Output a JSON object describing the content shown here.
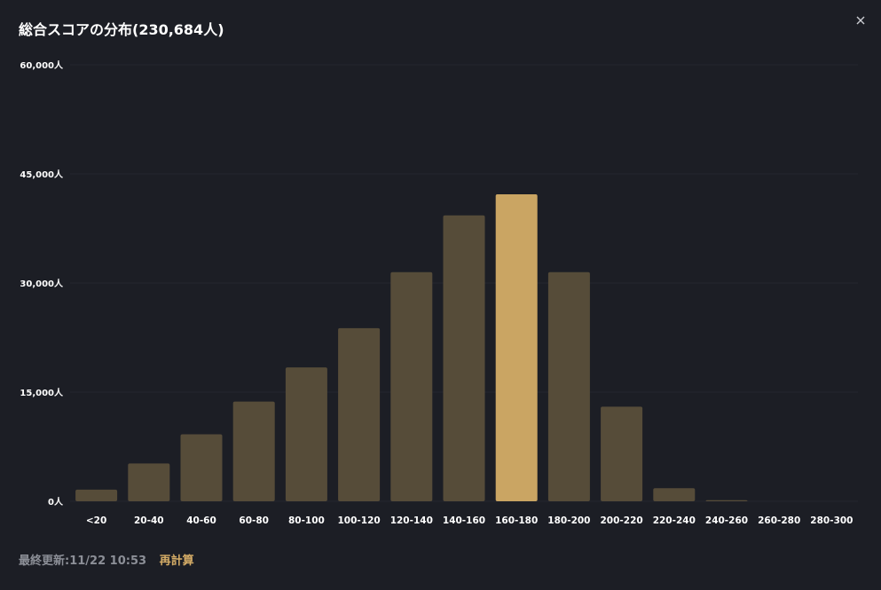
{
  "header": {
    "title": "総合スコアの分布(230,684人)",
    "close_icon": "close-icon"
  },
  "footer": {
    "updated_label": "最終更新:11/22 10:53",
    "recalc_label": "再計算"
  },
  "colors": {
    "background": "#1c1e25",
    "bar": "#564c39",
    "bar_highlight": "#caa563",
    "accent_text": "#d6ad67",
    "muted_text": "#8c8f97",
    "grid": "#25272e"
  },
  "chart_data": {
    "type": "bar",
    "categories": [
      "<20",
      "20-40",
      "40-60",
      "60-80",
      "80-100",
      "100-120",
      "120-140",
      "140-160",
      "160-180",
      "180-200",
      "200-220",
      "220-240",
      "240-260",
      "260-280",
      "280-300"
    ],
    "values": [
      1600,
      5200,
      9200,
      13700,
      18400,
      23800,
      31500,
      39300,
      42200,
      31500,
      13000,
      1800,
      150,
      0,
      0
    ],
    "highlight_index": 8,
    "y_ticks": [
      0,
      15000,
      30000,
      45000,
      60000
    ],
    "y_tick_labels": [
      "0人",
      "15,000人",
      "30,000人",
      "45,000人",
      "60,000人"
    ],
    "ylim": [
      0,
      60000
    ],
    "grid": true
  }
}
